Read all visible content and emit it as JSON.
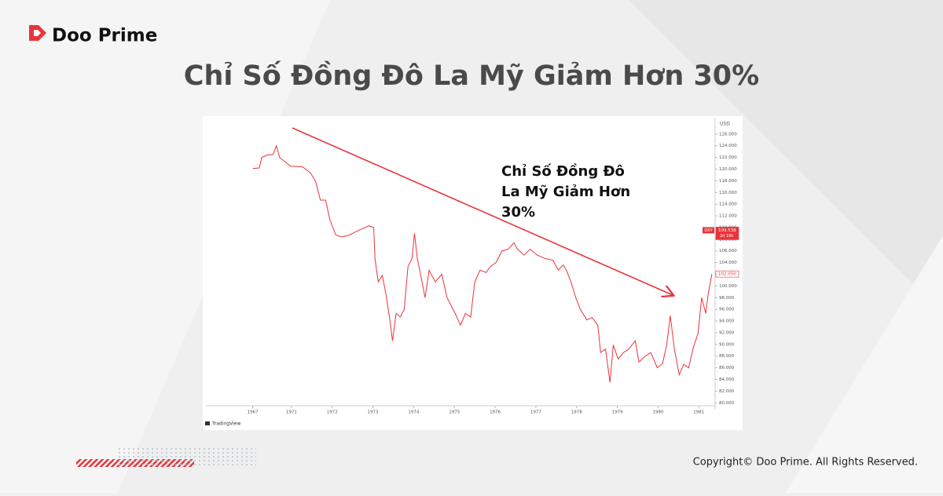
{
  "brand": "Doo Prime",
  "headline": "Chỉ Số Đồng Đô La Mỹ Giảm Hơn 30%",
  "copyright": "Copyright© Doo Prime. All Rights Reserved.",
  "chart_data": {
    "type": "line",
    "annotation": "Chỉ Số Đồng Đô La Mỹ Giảm Hơn 30%",
    "currency": "USD",
    "source": "TradingView",
    "price_tags": [
      {
        "name": "DXY",
        "value": 109.538,
        "label": "109.538",
        "countdown": "2d 16h",
        "color": "#e8343b"
      },
      {
        "value": 102.05,
        "label": "102.050",
        "color": "#e8343b"
      }
    ],
    "xlim": [
      0,
      125
    ],
    "xticks": [
      {
        "value": 11.5,
        "label": "1967"
      },
      {
        "value": 21,
        "label": "1971"
      },
      {
        "value": 31,
        "label": "1972"
      },
      {
        "value": 41,
        "label": "1973"
      },
      {
        "value": 51,
        "label": "1974"
      },
      {
        "value": 61,
        "label": "1975"
      },
      {
        "value": 71,
        "label": "1976"
      },
      {
        "value": 81,
        "label": "1977"
      },
      {
        "value": 91,
        "label": "1978"
      },
      {
        "value": 101,
        "label": "1979"
      },
      {
        "value": 111,
        "label": "1980"
      },
      {
        "value": 121,
        "label": "1981"
      }
    ],
    "ylim": [
      79.5,
      128.8
    ],
    "yticks": [
      {
        "value": 80,
        "label": "80.000"
      },
      {
        "value": 82,
        "label": "82.000"
      },
      {
        "value": 84,
        "label": "84.000"
      },
      {
        "value": 86,
        "label": "86.000"
      },
      {
        "value": 88,
        "label": "88.000"
      },
      {
        "value": 90,
        "label": "90.000"
      },
      {
        "value": 92,
        "label": "92.000"
      },
      {
        "value": 94,
        "label": "94.000"
      },
      {
        "value": 96,
        "label": "96.000"
      },
      {
        "value": 98,
        "label": "98.000"
      },
      {
        "value": 100,
        "label": "100.000"
      },
      {
        "value": 102,
        "label": "102.000"
      },
      {
        "value": 104,
        "label": "104.000"
      },
      {
        "value": 106,
        "label": "106.000"
      },
      {
        "value": 108,
        "label": "108.000"
      },
      {
        "value": 110,
        "label": "110.000"
      },
      {
        "value": 112,
        "label": "112.000"
      },
      {
        "value": 114,
        "label": "114.000"
      },
      {
        "value": 116,
        "label": "116.000"
      },
      {
        "value": 118,
        "label": "118.000"
      },
      {
        "value": 120,
        "label": "120.000"
      },
      {
        "value": 122,
        "label": "122.000"
      },
      {
        "value": 124,
        "label": "124.000"
      },
      {
        "value": 126,
        "label": "126.000"
      }
    ],
    "series": [
      {
        "name": "DXY",
        "color": "#e8343b",
        "x": [
          11.5,
          13.1,
          13.7,
          15,
          16.5,
          17.3,
          18.1,
          19.2,
          20.8,
          23.7,
          25.6,
          26.9,
          28.1,
          29.4,
          30.4,
          31.9,
          33.3,
          35.2,
          37.1,
          40,
          41.2,
          41.5,
          42.3,
          43.3,
          44.2,
          45.2,
          45.8,
          46.7,
          47.7,
          48.7,
          49.6,
          50.6,
          51.2,
          51.9,
          52.9,
          53.8,
          54.8,
          56.3,
          57.9,
          59.2,
          61.2,
          62.5,
          63.7,
          65,
          66,
          67.3,
          68.8,
          69.8,
          71.2,
          72.7,
          74.2,
          75.6,
          76.5,
          78.1,
          79.6,
          81.3,
          83.3,
          85.2,
          86.5,
          87.7,
          88.5,
          89.6,
          90.8,
          91.9,
          93.5,
          94.8,
          96.2,
          96.9,
          98.1,
          99.2,
          100,
          101.2,
          102.5,
          103.8,
          105.4,
          106.3,
          107.7,
          109.2,
          110.8,
          112.1,
          113.1,
          114,
          115,
          116.2,
          117.3,
          118.5,
          119.6,
          120.8,
          121.7,
          122.7,
          123.3,
          124.2
        ],
        "values": [
          120.1,
          120.2,
          122,
          122.4,
          122.5,
          124,
          122,
          121.4,
          120.5,
          120.4,
          119.4,
          118,
          114.7,
          114.7,
          111.4,
          108.7,
          108.4,
          108.7,
          109.4,
          110.3,
          110,
          104.7,
          100.7,
          101.8,
          98.6,
          94,
          90.6,
          95.3,
          94.7,
          96,
          103.3,
          104.7,
          109,
          104.7,
          101.3,
          98,
          102.7,
          100.7,
          102,
          98,
          95.3,
          93.3,
          95.3,
          94.7,
          100.7,
          102.7,
          102.3,
          103.3,
          104,
          106,
          106.3,
          107.4,
          106.3,
          105.3,
          106.3,
          105.3,
          104.7,
          104.4,
          102.7,
          103.6,
          102.7,
          100.7,
          98,
          96,
          94.2,
          94.6,
          93.3,
          88.6,
          89.2,
          83.5,
          89.9,
          87.5,
          88.6,
          89.2,
          90.6,
          87,
          87.9,
          88.6,
          86,
          86.7,
          89.9,
          94.9,
          89.2,
          84.8,
          86.6,
          86,
          89.3,
          91.9,
          98,
          95.3,
          98.6,
          102
        ]
      }
    ]
  }
}
